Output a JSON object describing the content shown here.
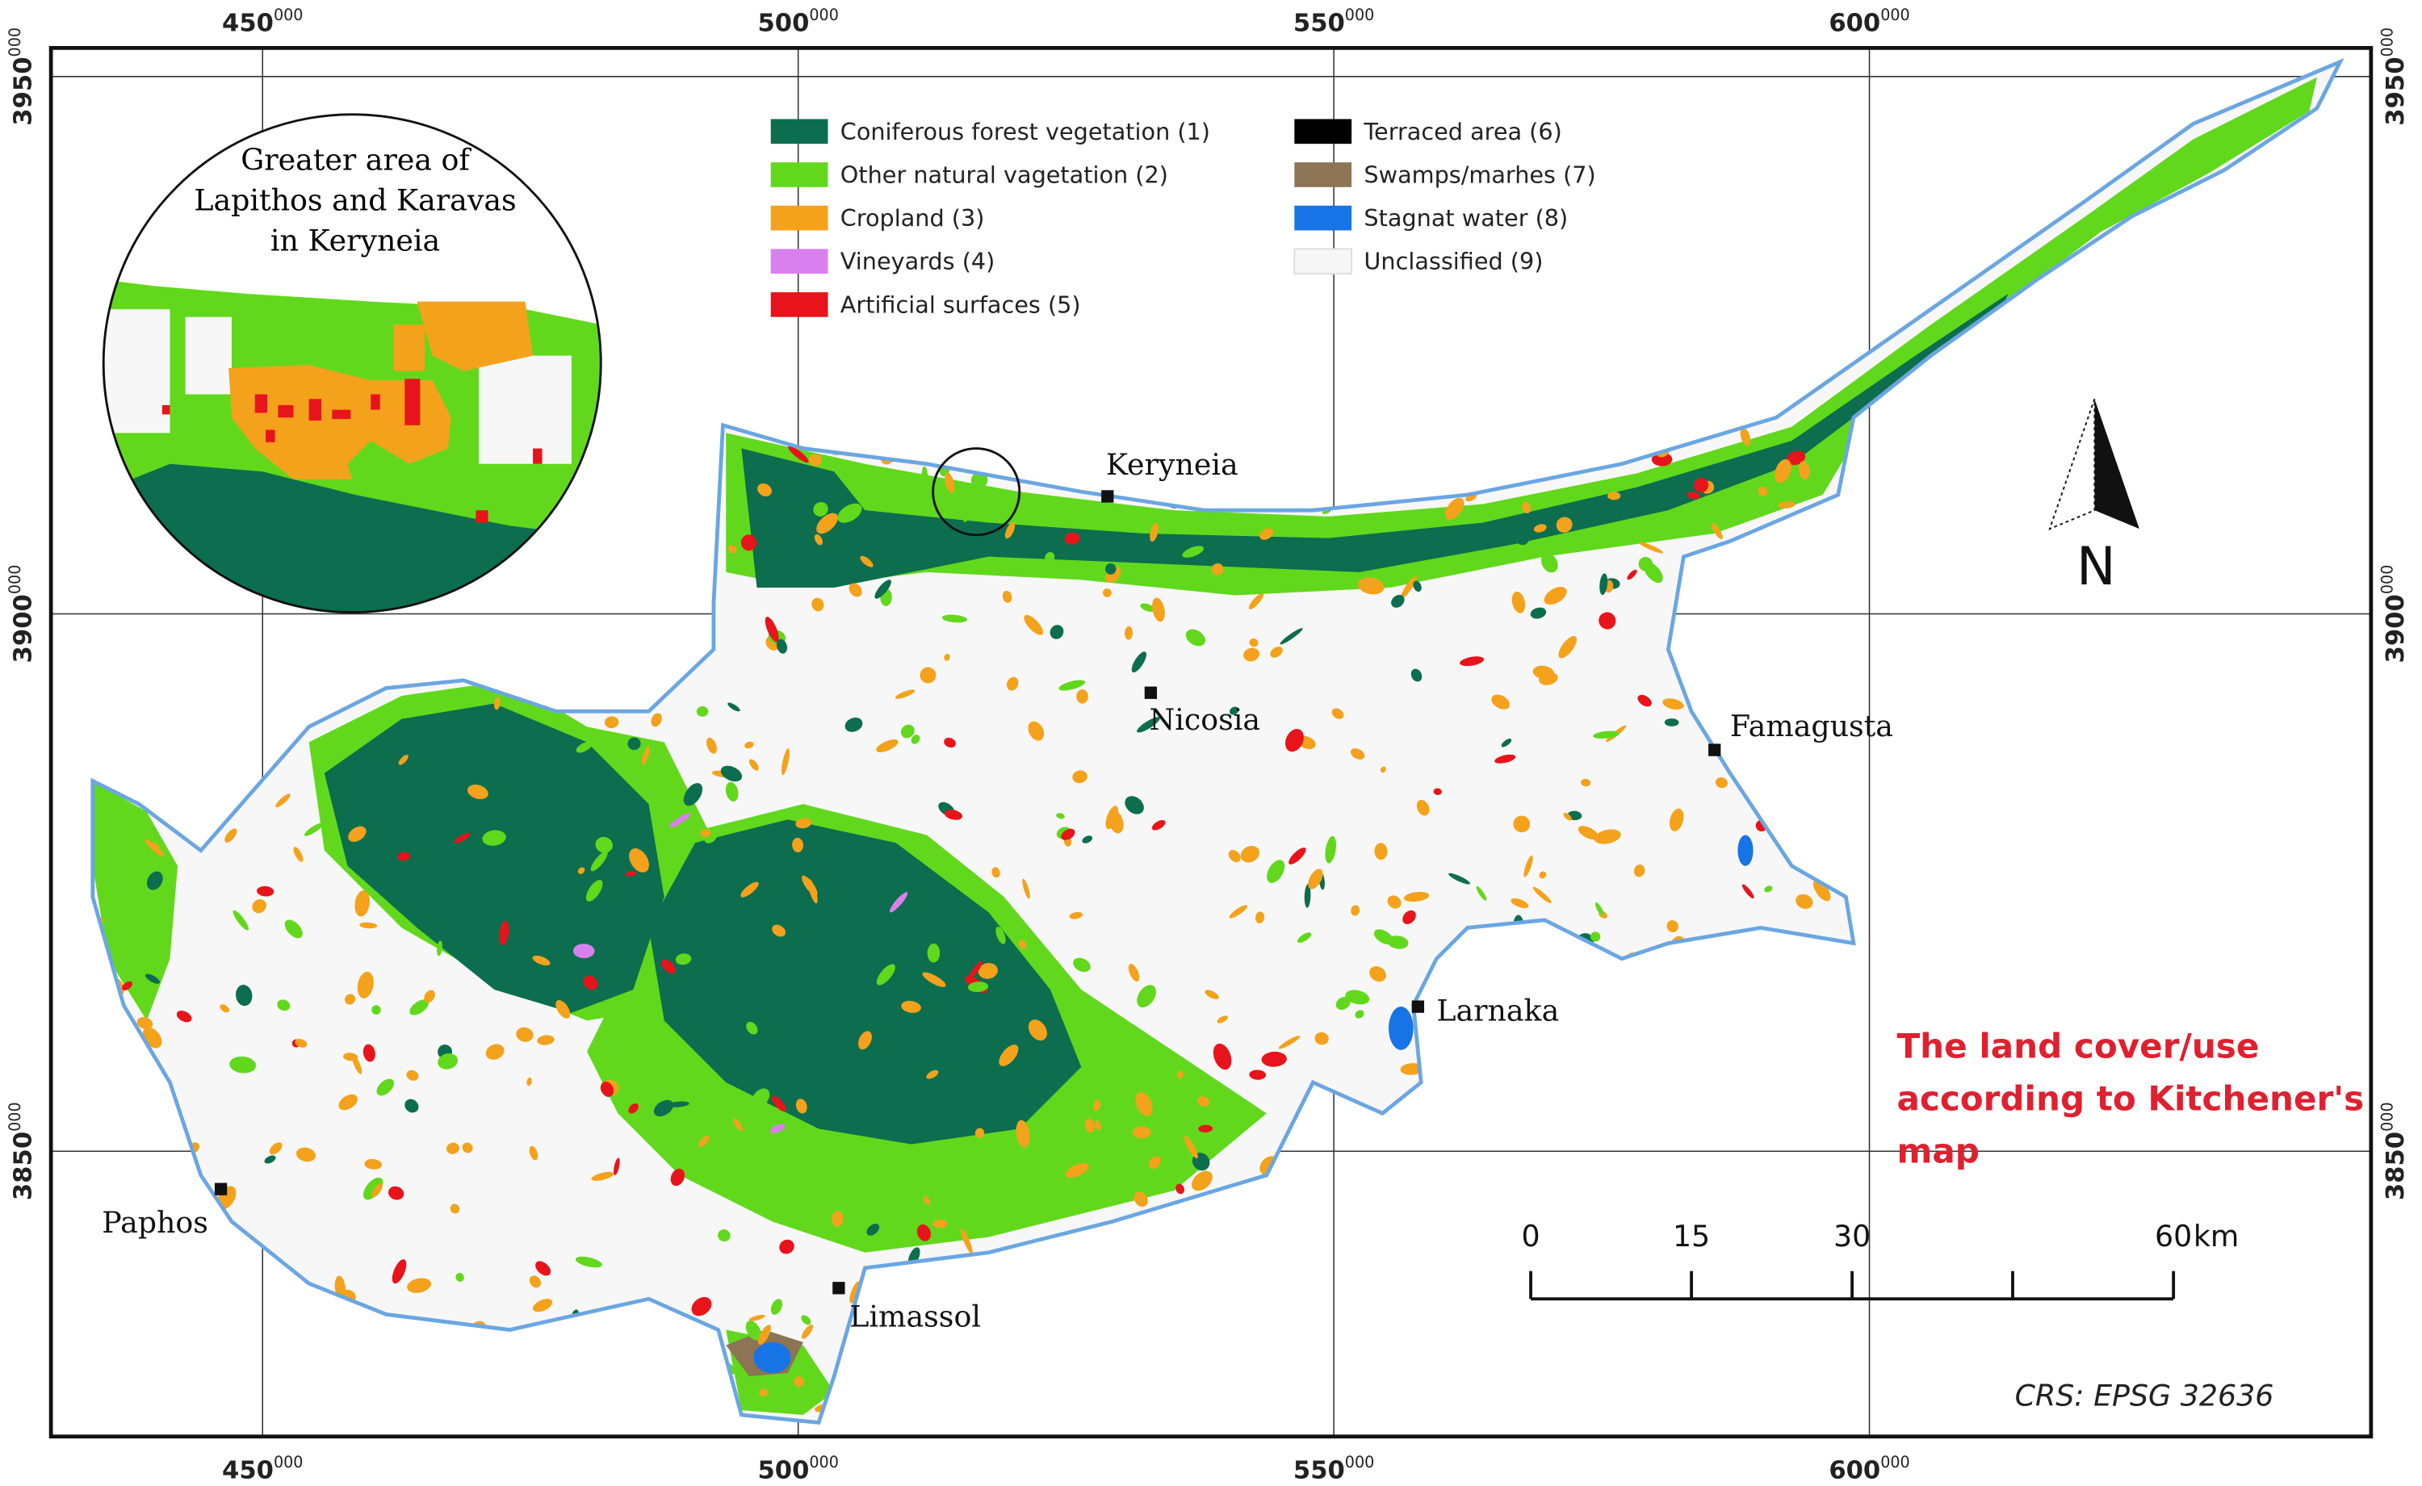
{
  "map": {
    "title_lines": [
      "The land cover/use",
      "according to Kitchener's",
      "map"
    ],
    "crs": "CRS: EPSG 32636",
    "inset_title_lines": [
      "Greater area of",
      "Lapithos and Karavas",
      "in Keryneia"
    ],
    "north": "N",
    "xticks": [
      {
        "value": 450000,
        "label": "450",
        "sup": "000"
      },
      {
        "value": 500000,
        "label": "500",
        "sup": "000"
      },
      {
        "value": 550000,
        "label": "550",
        "sup": "000"
      },
      {
        "value": 600000,
        "label": "600",
        "sup": "000"
      }
    ],
    "yticks": [
      {
        "value": 3850000,
        "label": "3850",
        "sup": "000"
      },
      {
        "value": 3900000,
        "label": "3900",
        "sup": "000"
      },
      {
        "value": 3950000,
        "label": "3950",
        "sup": "000"
      }
    ],
    "legend": [
      {
        "label": "Coniferous forest vegetation (1)",
        "color": "#0c6e4e"
      },
      {
        "label": "Other natural vagetation (2)",
        "color": "#62d81c"
      },
      {
        "label": "Cropland (3)",
        "color": "#f4a21c"
      },
      {
        "label": "Vineyards (4)",
        "color": "#da80ee"
      },
      {
        "label": "Artificial surfaces (5)",
        "color": "#e8141b"
      },
      {
        "label": "Terraced area (6)",
        "color": "#000000"
      },
      {
        "label": "Swamps/marhes (7)",
        "color": "#8c7455"
      },
      {
        "label": "Stagnat water (8)",
        "color": "#1774e6"
      },
      {
        "label": "Unclassified (9)",
        "color": "#f7f7f7"
      }
    ],
    "places": [
      "Keryneia",
      "Nicosia",
      "Famagusta",
      "Larnaka",
      "Limassol",
      "Paphos"
    ],
    "scale_bar": {
      "ticks": [
        0,
        15,
        30,
        60
      ],
      "unit": "km"
    }
  }
}
